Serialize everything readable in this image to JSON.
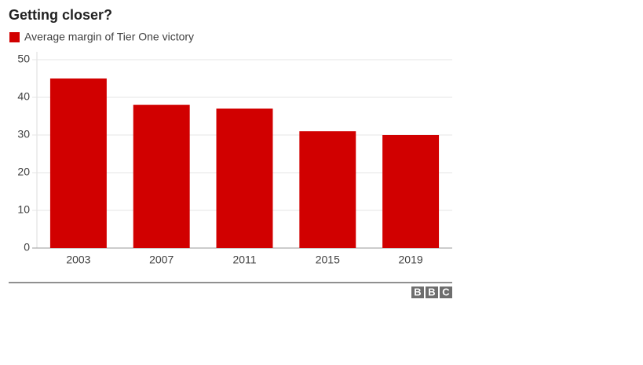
{
  "chart_data": {
    "type": "bar",
    "title": "Getting closer?",
    "categories": [
      "2003",
      "2007",
      "2011",
      "2015",
      "2019"
    ],
    "series": [
      {
        "name": "Average margin of Tier One victory",
        "color": "#d10000",
        "values": [
          45,
          38,
          37,
          31,
          30
        ]
      }
    ],
    "ylim": [
      0,
      50
    ],
    "yticks": [
      0,
      10,
      20,
      30,
      40,
      50
    ],
    "grid": true,
    "legend": "top-left",
    "logo": [
      "B",
      "B",
      "C"
    ]
  }
}
